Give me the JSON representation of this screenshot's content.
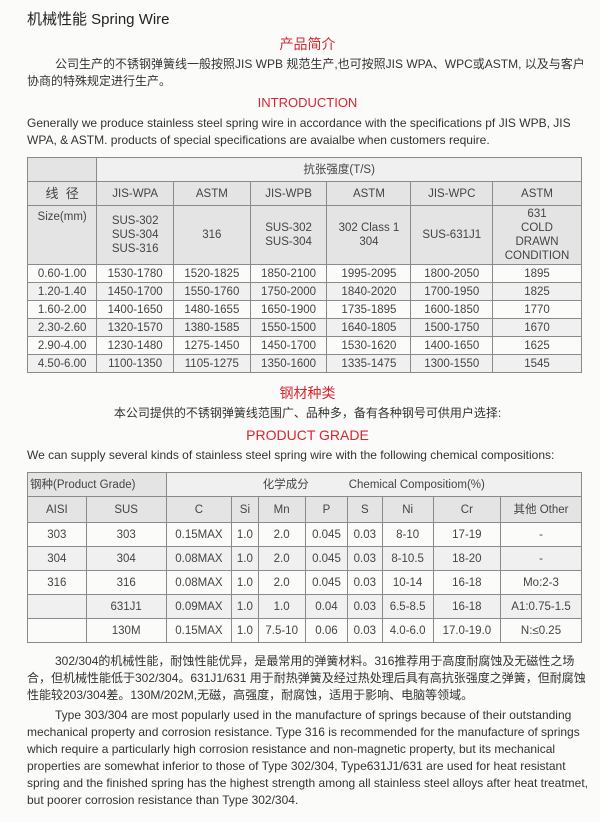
{
  "title": "机械性能  Spring Wire",
  "intro": {
    "heading_cn": "产品简介",
    "text_cn": "公司生产的不锈钢弹簧线一般按照JIS WPB 规范生产,也可按照JIS WPA、WPC或ASTM, 以及与客户协商的特殊规定进行生产。",
    "heading_en": "INTRODUCTION",
    "text_en": "Generally we produce stainless steel spring wire in accordance with the specifications pf JIS WPB, JIS WPA, & ASTM. products of special specifications are avaialbe when customers require."
  },
  "tensile_table": {
    "group_header": "抗张强度(T/S)",
    "size_label_cn": "线  径",
    "size_label_en": "Size(mm)",
    "standards": [
      "JIS-WPA",
      "ASTM",
      "JIS-WPB",
      "ASTM",
      "JIS-WPC",
      "ASTM"
    ],
    "grades": [
      "SUS-302\nSUS-304\nSUS-316",
      "316",
      "SUS-302\nSUS-304",
      "302 Class 1\n304",
      "SUS-631J1",
      "631\nCOLD\nDRAWN\nCONDITION"
    ],
    "rows": [
      [
        "0.60-1.00",
        "1530-1780",
        "1520-1825",
        "1850-2100",
        "1995-2095",
        "1800-2050",
        "1895"
      ],
      [
        "1.20-1.40",
        "1450-1700",
        "1550-1760",
        "1750-2000",
        "1840-2020",
        "1700-1950",
        "1825"
      ],
      [
        "1.60-2.00",
        "1400-1650",
        "1480-1655",
        "1650-1900",
        "1735-1895",
        "1600-1850",
        "1770"
      ],
      [
        "2.30-2.60",
        "1320-1570",
        "1380-1585",
        "1550-1500",
        "1640-1805",
        "1500-1750",
        "1670"
      ],
      [
        "2.90-4.00",
        "1230-1480",
        "1275-1450",
        "1450-1700",
        "1530-1620",
        "1400-1650",
        "1625"
      ],
      [
        "4.50-6.00",
        "1100-1350",
        "1105-1275",
        "1350-1600",
        "1335-1475",
        "1300-1550",
        "1545"
      ]
    ]
  },
  "grade": {
    "heading_cn": "钢材种类",
    "text_cn": "本公司提供的不锈钢弹簧线范围广、品种多，备有各种钢号可供用户选择:",
    "heading_en": "PRODUCT GRADE",
    "text_en": "We can supply several kinds of stainless steel spring wire with the following chemical compositions:"
  },
  "chem_table": {
    "grade_header": "钢种(Product Grade)",
    "comp_header_cn": "化学成分",
    "comp_header_en": "Chemical Compositiom(%)",
    "columns": [
      "AISI",
      "SUS",
      "C",
      "Si",
      "Mn",
      "P",
      "S",
      "Ni",
      "Cr",
      "其他 Other"
    ],
    "rows": [
      [
        "303",
        "303",
        "0.15MAX",
        "1.0",
        "2.0",
        "0.045",
        "0.03",
        "8-10",
        "17-19",
        "-"
      ],
      [
        "304",
        "304",
        "0.08MAX",
        "1.0",
        "2.0",
        "0.045",
        "0.03",
        "8-10.5",
        "18-20",
        "-"
      ],
      [
        "316",
        "316",
        "0.08MAX",
        "1.0",
        "2.0",
        "0.045",
        "0.03",
        "10-14",
        "16-18",
        "Mo:2-3"
      ],
      [
        "",
        "631J1",
        "0.09MAX",
        "1.0",
        "1.0",
        "0.04",
        "0.03",
        "6.5-8.5",
        "16-18",
        "A1:0.75-1.5"
      ],
      [
        "",
        "130M",
        "0.15MAX",
        "1.0",
        "7.5-10",
        "0.06",
        "0.03",
        "4.0-6.0",
        "17.0-19.0",
        "N:≤0.25"
      ]
    ]
  },
  "notes": {
    "text_cn": "302/304的机械性能，耐蚀性能优异，是最常用的弹簧材料。316推荐用于高度耐腐蚀及无磁性之场合，但机械性能低于302/304。631J1/631 用于耐热弹簧及经过热处理后具有高抗张强度之弹簧，但耐腐蚀性能较203/304差。130M/202M,无磁，高强度，耐腐蚀，适用于影响、电脑等领域。",
    "text_en": "Type 303/304 are most popularly used in the manufacture of springs because of their outstanding mechanical property and corrosion resistance. Type 316 is recommended for the manufacture of springs which require a particularly high corrosion resistance and non-magnetic property, but its mechanical properties are somewhat inferior to those of Type 302/304, Type631J1/631 are used for heat resistant spring and the finished spring has the highest strength among all stainless steel alloys after heat treatmet, but poorer corrosion resistance than Type 302/304."
  },
  "colors": {
    "heading_red": "#d8262e",
    "header_gray": "#e4e4e4"
  }
}
